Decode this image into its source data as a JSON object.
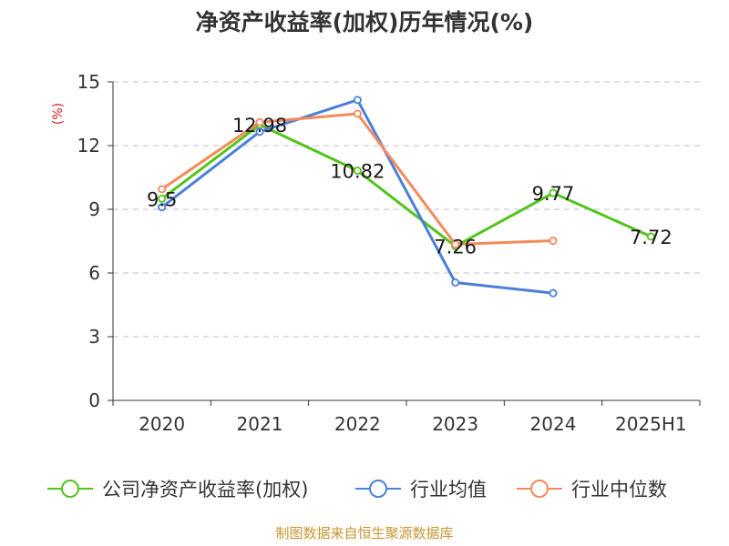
{
  "chart_data": {
    "type": "line",
    "title": "净资产收益率(加权)历年情况(%)",
    "ylabel": "(%)",
    "xlabel": "",
    "categories": [
      "2020",
      "2021",
      "2022",
      "2023",
      "2024",
      "2025H1"
    ],
    "ylim": [
      0,
      15
    ],
    "yticks": [
      0,
      3,
      6,
      9,
      12,
      15
    ],
    "grid": "horizontal dashed",
    "legend_position": "bottom",
    "series": [
      {
        "name": "公司净资产收益率(加权)",
        "color": "#52c41a",
        "values": [
          9.5,
          12.98,
          10.82,
          7.26,
          9.77,
          7.72
        ],
        "labels": [
          "9.5",
          "12.98",
          "10.82",
          "7.26",
          "9.77",
          "7.72"
        ]
      },
      {
        "name": "行业均值",
        "color": "#4a7fdb",
        "values": [
          9.1,
          12.65,
          14.15,
          5.55,
          5.05,
          null
        ]
      },
      {
        "name": "行业中位数",
        "color": "#f5895a",
        "values": [
          9.95,
          13.1,
          13.5,
          7.35,
          7.52,
          null
        ]
      }
    ]
  },
  "source": "制图数据来自恒生聚源数据库"
}
